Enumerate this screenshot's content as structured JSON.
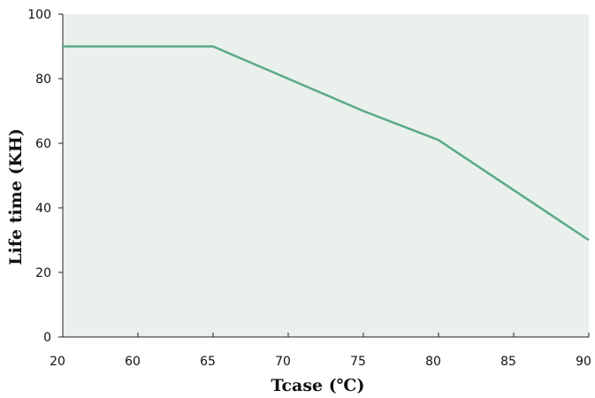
{
  "chart_data": {
    "type": "line",
    "title": "",
    "xlabel": "Tcase (℃)",
    "ylabel": "Life time (KH)",
    "x_tick_labels": [
      "20",
      "60",
      "65",
      "70",
      "75",
      "80",
      "85",
      "90"
    ],
    "y_ticks": [
      0,
      20,
      40,
      60,
      80,
      100
    ],
    "y_tick_labels": [
      "0",
      "20",
      "40",
      "60",
      "80",
      "100"
    ],
    "ylim": [
      0,
      100
    ],
    "grid": false,
    "series": [
      {
        "x": [
          "20",
          "60",
          "65",
          "70",
          "75",
          "80",
          "85",
          "90"
        ],
        "values": [
          90,
          90,
          90,
          80,
          70,
          61,
          45.5,
          30
        ]
      }
    ],
    "colors": {
      "plot_background": "#eaf1ec",
      "line": "#5aaa8a",
      "axis": "#222222",
      "text": "#111111"
    }
  }
}
